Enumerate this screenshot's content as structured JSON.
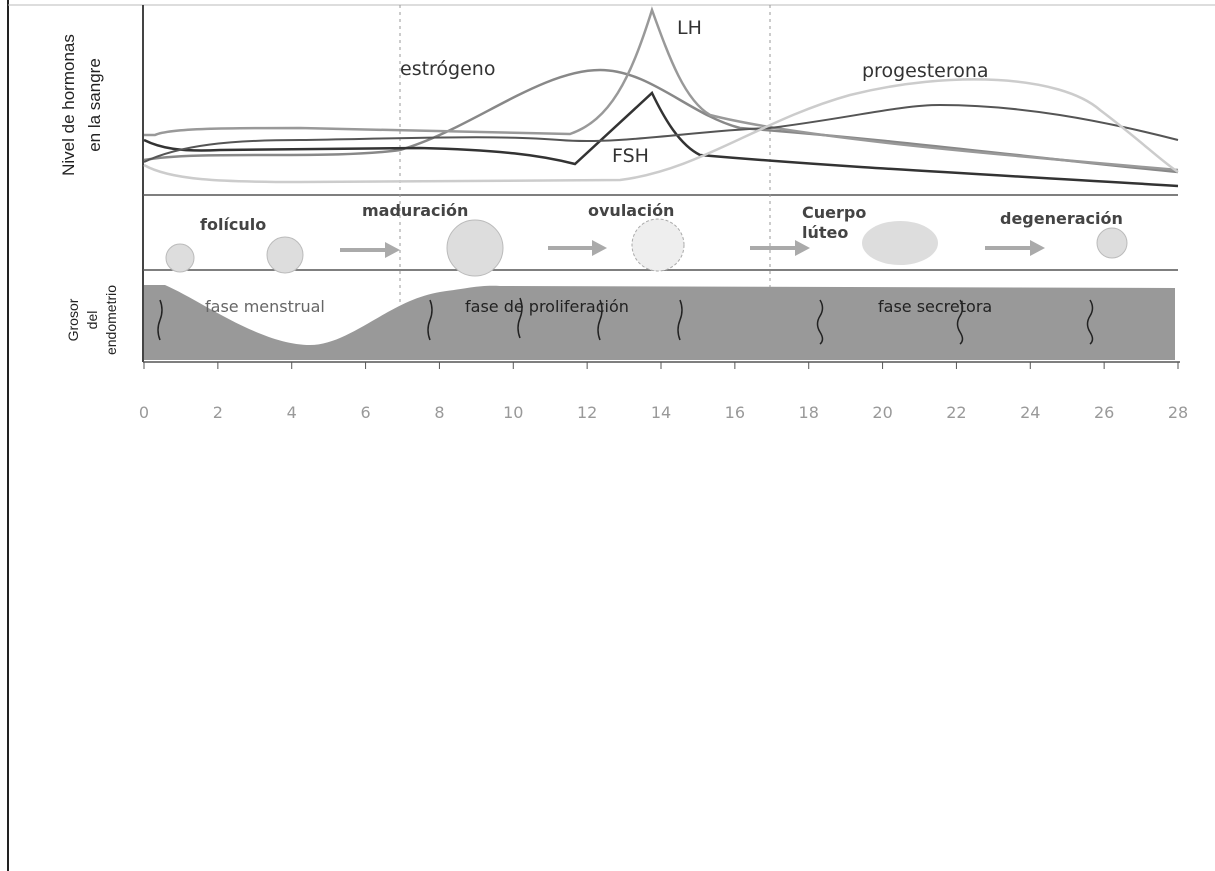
{
  "y_axis_labels": {
    "hormones": [
      "Nivel de hormonas",
      "en la sangre"
    ],
    "endometrium": [
      "Grosor",
      "del",
      "endometrio"
    ]
  },
  "hormones": [
    {
      "label": "estrógeno"
    },
    {
      "label": "LH"
    },
    {
      "label": "FSH"
    },
    {
      "label": "progesterona"
    }
  ],
  "stages": [
    {
      "label": "folículo"
    },
    {
      "label": "maduración"
    },
    {
      "label": "ovulación"
    },
    {
      "label": "Cuerpo"
    },
    {
      "label": "lúteo"
    },
    {
      "label": "degeneración"
    }
  ],
  "phases": [
    {
      "label": "fase menstrual"
    },
    {
      "label": "fase de proliferación"
    },
    {
      "label": "fase secretora"
    }
  ],
  "x_axis": {
    "ticks": [
      0,
      2,
      4,
      6,
      8,
      10,
      12,
      14,
      16,
      18,
      20,
      22,
      24,
      26,
      28
    ]
  }
}
